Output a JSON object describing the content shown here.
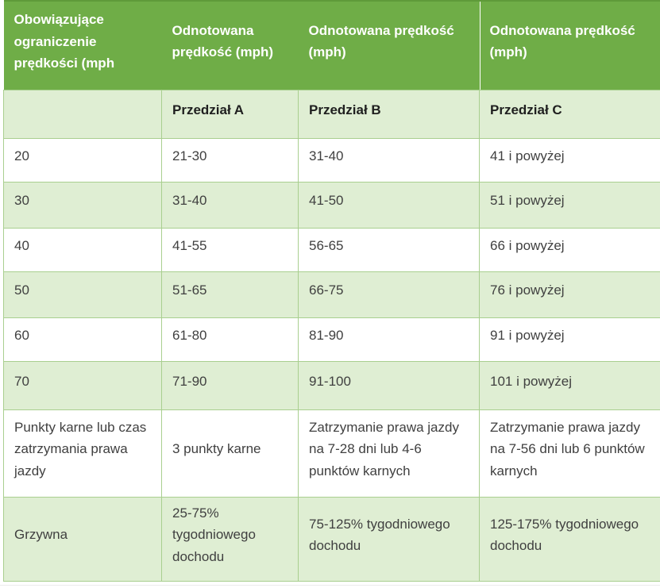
{
  "chart_data": {
    "type": "table",
    "columns": [
      "Obowiązujące ograniczenie prędkości (mph",
      "Odnotowana prędkość (mph)",
      "Odnotowana prędkość (mph)",
      "Odnotowana prędkość (mph)"
    ],
    "subcolumns": [
      "",
      "Przedział A",
      "Przedział B",
      "Przedział C"
    ],
    "rows": [
      [
        "20",
        "21-30",
        "31-40",
        "41 i powyżej"
      ],
      [
        "30",
        "31-40",
        "41-50",
        "51 i powyżej"
      ],
      [
        "40",
        "41-55",
        "56-65",
        "66 i powyżej"
      ],
      [
        "50",
        "51-65",
        "66-75",
        "76 i powyżej"
      ],
      [
        "60",
        "61-80",
        "81-90",
        "91 i powyżej"
      ],
      [
        "70",
        "71-90",
        "91-100",
        "101 i powyżej"
      ],
      [
        "Punkty karne lub czas zatrzymania prawa jazdy",
        "3 punkty karne",
        "Zatrzymanie prawa jazdy na 7-28 dni lub 4-6 punktów karnych",
        "Zatrzymanie prawa jazdy na 7-56 dni lub 6 punktów karnych"
      ],
      [
        "Grzywna",
        "25-75% tygodniowego dochodu",
        "75-125% tygodniowego dochodu",
        "125-175% tygodniowego dochodu"
      ]
    ],
    "layout_hints": {
      "banded_rows": true,
      "band_pattern": "subheader and even data rows shaded"
    }
  },
  "colors": {
    "header_bg": "#6fad47",
    "header_top_edge": "#5f9a3a",
    "header_text": "#ffffff",
    "band_bg": "#dfeed3",
    "border": "#a9cf8f",
    "body_text": "#404040",
    "subheader_text": "#1f1f1f"
  }
}
